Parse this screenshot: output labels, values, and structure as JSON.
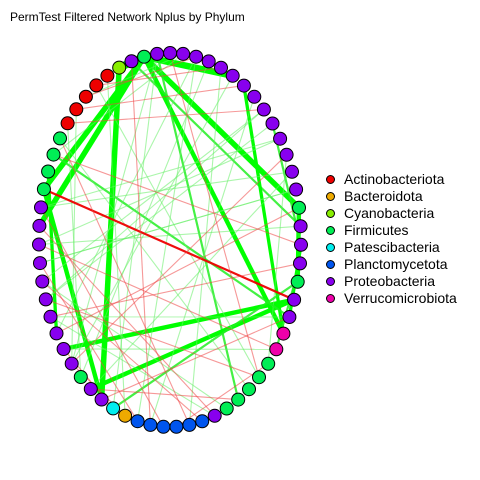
{
  "title": "PermTest Filtered Network Nplus by Phylum",
  "colors": {
    "Actinobacteriota": "#ee0000",
    "Bacteroidota": "#eeaa00",
    "Cyanobacteria": "#88ee00",
    "Firmicutes": "#00ee55",
    "Patescibacteria": "#00eeee",
    "Planctomycetota": "#0055ee",
    "Proteobacteria": "#8800ee",
    "Verrucomicrobiota": "#ee00aa"
  },
  "legend": [
    {
      "label": "Actinobacteriota",
      "color": "#ee0000"
    },
    {
      "label": "Bacteroidota",
      "color": "#eeaa00"
    },
    {
      "label": "Cyanobacteria",
      "color": "#88ee00"
    },
    {
      "label": "Firmicutes",
      "color": "#00ee55"
    },
    {
      "label": "Patescibacteria",
      "color": "#00eeee"
    },
    {
      "label": "Planctomycetota",
      "color": "#0055ee"
    },
    {
      "label": "Proteobacteria",
      "color": "#8800ee"
    },
    {
      "label": "Verrucomicrobiota",
      "color": "#ee00aa"
    }
  ],
  "nodes": [
    "Proteobacteria",
    "Proteobacteria",
    "Proteobacteria",
    "Proteobacteria",
    "Proteobacteria",
    "Proteobacteria",
    "Proteobacteria",
    "Proteobacteria",
    "Proteobacteria",
    "Proteobacteria",
    "Proteobacteria",
    "Proteobacteria",
    "Proteobacteria",
    "Proteobacteria",
    "Firmicutes",
    "Proteobacteria",
    "Proteobacteria",
    "Proteobacteria",
    "Firmicutes",
    "Proteobacteria",
    "Proteobacteria",
    "Verrucomicrobiota",
    "Verrucomicrobiota",
    "Firmicutes",
    "Firmicutes",
    "Firmicutes",
    "Firmicutes",
    "Firmicutes",
    "Proteobacteria",
    "Planctomycetota",
    "Planctomycetota",
    "Planctomycetota",
    "Planctomycetota",
    "Planctomycetota",
    "Planctomycetota",
    "Bacteroidota",
    "Patescibacteria",
    "Proteobacteria",
    "Proteobacteria",
    "Firmicutes",
    "Proteobacteria",
    "Proteobacteria",
    "Proteobacteria",
    "Proteobacteria",
    "Proteobacteria",
    "Proteobacteria",
    "Proteobacteria",
    "Proteobacteria",
    "Proteobacteria",
    "Proteobacteria",
    "Firmicutes",
    "Firmicutes",
    "Firmicutes",
    "Firmicutes",
    "Actinobacteriota",
    "Actinobacteriota",
    "Actinobacteriota",
    "Actinobacteriota",
    "Actinobacteriota",
    "Cyanobacteria",
    "Proteobacteria",
    "Firmicutes",
    "Proteobacteria"
  ],
  "edges": [
    {
      "s": 61,
      "t": 59,
      "w": 7,
      "sign": "pos"
    },
    {
      "s": 61,
      "t": 5,
      "w": 6,
      "sign": "pos"
    },
    {
      "s": 61,
      "t": 48,
      "w": 5,
      "sign": "pos"
    },
    {
      "s": 61,
      "t": 50,
      "w": 5,
      "sign": "pos"
    },
    {
      "s": 59,
      "t": 37,
      "w": 5,
      "sign": "pos"
    },
    {
      "s": 50,
      "t": 37,
      "w": 4,
      "sign": "pos"
    },
    {
      "s": 51,
      "t": 42,
      "w": 3,
      "sign": "pos"
    },
    {
      "s": 61,
      "t": 21,
      "w": 4,
      "sign": "pos"
    },
    {
      "s": 61,
      "t": 14,
      "w": 5,
      "sign": "pos"
    },
    {
      "s": 60,
      "t": 15,
      "w": 2,
      "sign": "pos"
    },
    {
      "s": 62,
      "t": 26,
      "w": 2,
      "sign": "pos"
    },
    {
      "s": 6,
      "t": 21,
      "w": 3,
      "sign": "pos"
    },
    {
      "s": 16,
      "t": 20,
      "w": 3,
      "sign": "pos"
    },
    {
      "s": 17,
      "t": 22,
      "w": 2,
      "sign": "pos"
    },
    {
      "s": 19,
      "t": 41,
      "w": 4,
      "sign": "pos"
    },
    {
      "s": 19,
      "t": 38,
      "w": 4,
      "sign": "pos"
    },
    {
      "s": 14,
      "t": 18,
      "w": 4,
      "sign": "pos"
    },
    {
      "s": 9,
      "t": 16,
      "w": 2,
      "sign": "pos"
    },
    {
      "s": 11,
      "t": 23,
      "w": 1,
      "sign": "pos"
    },
    {
      "s": 52,
      "t": 20,
      "w": 2,
      "sign": "pos"
    },
    {
      "s": 18,
      "t": 36,
      "w": 2,
      "sign": "pos"
    },
    {
      "s": 3,
      "t": 39,
      "w": 1,
      "sign": "pos"
    },
    {
      "s": 2,
      "t": 34,
      "w": 1,
      "sign": "pos"
    },
    {
      "s": 62,
      "t": 40,
      "w": 1,
      "sign": "pos"
    },
    {
      "s": 57,
      "t": 24,
      "w": 1,
      "sign": "pos"
    },
    {
      "s": 53,
      "t": 25,
      "w": 1,
      "sign": "pos"
    },
    {
      "s": 49,
      "t": 12,
      "w": 1,
      "sign": "pos"
    },
    {
      "s": 46,
      "t": 13,
      "w": 1,
      "sign": "pos"
    },
    {
      "s": 47,
      "t": 10,
      "w": 1,
      "sign": "pos"
    },
    {
      "s": 44,
      "t": 9,
      "w": 1,
      "sign": "pos"
    },
    {
      "s": 44,
      "t": 8,
      "w": 1,
      "sign": "pos"
    },
    {
      "s": 45,
      "t": 27,
      "w": 1,
      "sign": "pos"
    },
    {
      "s": 43,
      "t": 28,
      "w": 1,
      "sign": "pos"
    },
    {
      "s": 8,
      "t": 45,
      "w": 1,
      "sign": "pos"
    },
    {
      "s": 1,
      "t": 52,
      "w": 1,
      "sign": "pos"
    },
    {
      "s": 0,
      "t": 60,
      "w": 1,
      "sign": "pos"
    },
    {
      "s": 4,
      "t": 30,
      "w": 1,
      "sign": "pos"
    },
    {
      "s": 7,
      "t": 33,
      "w": 1,
      "sign": "pos"
    },
    {
      "s": 2,
      "t": 42,
      "w": 1,
      "sign": "pos"
    },
    {
      "s": 1,
      "t": 56,
      "w": 1,
      "sign": "pos"
    },
    {
      "s": 10,
      "t": 49,
      "w": 1,
      "sign": "pos"
    },
    {
      "s": 54,
      "t": 39,
      "w": 1,
      "sign": "pos"
    },
    {
      "s": 55,
      "t": 40,
      "w": 1,
      "sign": "pos"
    },
    {
      "s": 58,
      "t": 35,
      "w": 1,
      "sign": "pos"
    },
    {
      "s": 12,
      "t": 38,
      "w": 1,
      "sign": "pos"
    },
    {
      "s": 13,
      "t": 46,
      "w": 1,
      "sign": "pos"
    },
    {
      "s": 15,
      "t": 47,
      "w": 1,
      "sign": "pos"
    },
    {
      "s": 43,
      "t": 20,
      "w": 1,
      "sign": "pos"
    },
    {
      "s": 41,
      "t": 22,
      "w": 1,
      "sign": "pos"
    },
    {
      "s": 36,
      "t": 62,
      "w": 1,
      "sign": "pos"
    },
    {
      "s": 40,
      "t": 5,
      "w": 1,
      "sign": "pos"
    },
    {
      "s": 50,
      "t": 19,
      "w": 2,
      "sign": "neg"
    },
    {
      "s": 54,
      "t": 8,
      "w": 1,
      "sign": "neg"
    },
    {
      "s": 56,
      "t": 2,
      "w": 1,
      "sign": "neg"
    },
    {
      "s": 42,
      "t": 14,
      "w": 1,
      "sign": "neg"
    },
    {
      "s": 43,
      "t": 17,
      "w": 1,
      "sign": "neg"
    },
    {
      "s": 44,
      "t": 24,
      "w": 1,
      "sign": "neg"
    },
    {
      "s": 47,
      "t": 22,
      "w": 1,
      "sign": "neg"
    },
    {
      "s": 48,
      "t": 28,
      "w": 1,
      "sign": "neg"
    },
    {
      "s": 37,
      "t": 20,
      "w": 1,
      "sign": "neg"
    },
    {
      "s": 38,
      "t": 26,
      "w": 1,
      "sign": "neg"
    },
    {
      "s": 40,
      "t": 11,
      "w": 1,
      "sign": "neg"
    },
    {
      "s": 45,
      "t": 29,
      "w": 1,
      "sign": "neg"
    },
    {
      "s": 52,
      "t": 16,
      "w": 1,
      "sign": "neg"
    },
    {
      "s": 57,
      "t": 4,
      "w": 1,
      "sign": "neg"
    },
    {
      "s": 55,
      "t": 6,
      "w": 1,
      "sign": "neg"
    },
    {
      "s": 53,
      "t": 30,
      "w": 1,
      "sign": "neg"
    },
    {
      "s": 49,
      "t": 32,
      "w": 1,
      "sign": "neg"
    },
    {
      "s": 46,
      "t": 34,
      "w": 1,
      "sign": "neg"
    },
    {
      "s": 0,
      "t": 24,
      "w": 1,
      "sign": "neg"
    },
    {
      "s": 60,
      "t": 33,
      "w": 1,
      "sign": "neg"
    },
    {
      "s": 31,
      "t": 23,
      "w": 1,
      "sign": "neg"
    },
    {
      "s": 36,
      "t": 41,
      "w": 1,
      "sign": "neg"
    },
    {
      "s": 35,
      "t": 40,
      "w": 1,
      "sign": "neg"
    }
  ]
}
